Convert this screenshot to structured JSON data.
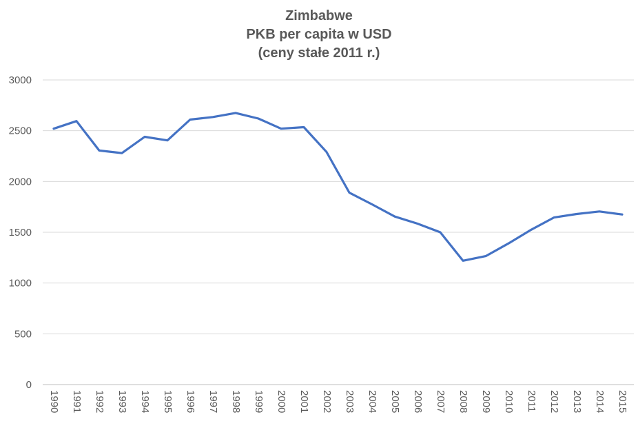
{
  "chart_data": {
    "type": "line",
    "title_lines": [
      "Zimbabwe",
      "PKB per capita w USD",
      "(ceny stałe 2011 r.)"
    ],
    "xlabel": "",
    "ylabel": "",
    "ylim": [
      0,
      3000
    ],
    "yticks": [
      0,
      500,
      1000,
      1500,
      2000,
      2500,
      3000
    ],
    "grid": true,
    "legend": "none",
    "line_color": "#4472c4",
    "categories": [
      "1990",
      "1991",
      "1992",
      "1993",
      "1994",
      "1995",
      "1996",
      "1997",
      "1998",
      "1999",
      "2000",
      "2001",
      "2002",
      "2003",
      "2004",
      "2005",
      "2006",
      "2007",
      "2008",
      "2009",
      "2010",
      "2011",
      "2012",
      "2013",
      "2014",
      "2015"
    ],
    "series": [
      {
        "values": [
          2520,
          2595,
          2305,
          2280,
          2440,
          2405,
          2610,
          2635,
          2675,
          2620,
          2520,
          2535,
          2290,
          1890,
          1775,
          1655,
          1585,
          1500,
          1220,
          1265,
          1390,
          1525,
          1645,
          1680,
          1705,
          1675
        ]
      }
    ]
  }
}
